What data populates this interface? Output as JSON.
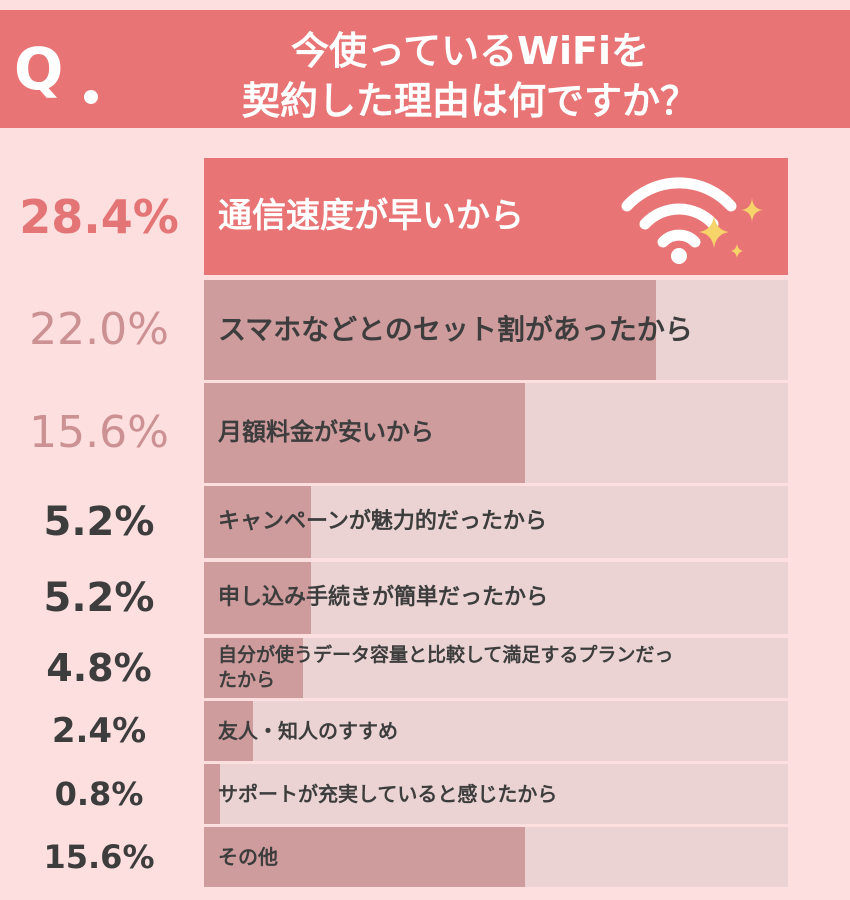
{
  "question": {
    "mark": "Q",
    "line1": "今使っているWiFiを",
    "line2": "契約した理由は何ですか？"
  },
  "colors": {
    "header_bg": "#e87475",
    "page_bg": "#fddfe0",
    "top_bar": "#e87475",
    "bar_fill": "#cf9c9d",
    "bar_track": "#ebd3d3",
    "pct_top": "#e47576",
    "pct_second": "#cb9193",
    "pct_rest": "#3d3d3d"
  },
  "icons": [
    "wifi-icon",
    "sparkle-icon"
  ],
  "chart_data": {
    "type": "bar",
    "orientation": "horizontal",
    "unit": "%",
    "xlim": [
      0,
      28.4
    ],
    "categories": [
      "通信速度が早いから",
      "スマホなどとのセット割があったから",
      "月額料金が安いから",
      "キャンペーンが魅力的だったから",
      "申し込み手続きが簡単だったから",
      "自分が使うデータ容量と比較して満足するプランだったから",
      "友人・知人のすすめ",
      "サポートが充実していると感じたから",
      "その他"
    ],
    "values": [
      28.4,
      22.0,
      15.6,
      5.2,
      5.2,
      4.8,
      2.4,
      0.8,
      15.6
    ],
    "value_labels": [
      "28.4%",
      "22.0%",
      "15.6%",
      "5.2%",
      "5.2%",
      "4.8%",
      "2.4%",
      "0.8%",
      "15.6%"
    ]
  }
}
